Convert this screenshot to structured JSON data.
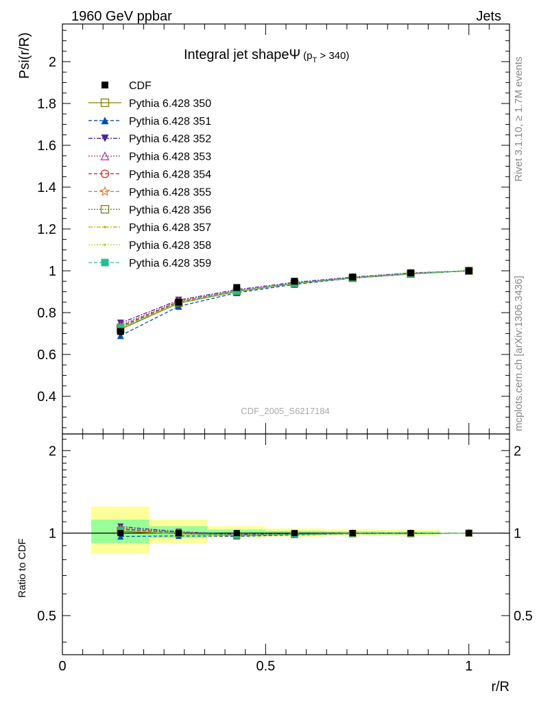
{
  "header": {
    "left": "1960 GeV ppbar",
    "right": "Jets"
  },
  "side": {
    "rivet": "Rivet 3.1.10, ≥ 1.7M events",
    "mcplots": "mcplots.cern.ch [arXiv:1306.3436]"
  },
  "title": {
    "main": "Integral jet shapeΨ",
    "sub_open": "(p",
    "sub_index": "T",
    "sub_close": " > 340)"
  },
  "analysis_id": "CDF_2005_S6217184",
  "chart_data": {
    "type": "line",
    "xlabel": "r/R",
    "ylabel": "Psi(r/R)",
    "ratio_ylabel": "Ratio to CDF",
    "xlim": [
      0,
      1.1
    ],
    "ylim": [
      0.22,
      2.18
    ],
    "ratio_ylim": [
      0.36,
      2.3
    ],
    "x_ticks": [
      "0",
      "0.5",
      "1"
    ],
    "y_ticks": [
      "0.4",
      "0.6",
      "0.8",
      "1",
      "1.2",
      "1.4",
      "1.6",
      "1.8",
      "2"
    ],
    "ratio_ticks": [
      "0.5",
      "1",
      "2"
    ],
    "x": [
      0.143,
      0.286,
      0.429,
      0.571,
      0.714,
      0.857,
      1.0
    ],
    "data_series": {
      "name": "CDF",
      "values": [
        0.71,
        0.85,
        0.92,
        0.95,
        0.97,
        0.99,
        1.0
      ],
      "color": "#000000",
      "marker": "filled-square"
    },
    "band_edges": [
      0.071,
      0.214,
      0.357,
      0.5,
      0.643,
      0.786,
      0.929
    ],
    "band_yellow_ratio": [
      [
        0.84,
        1.25
      ],
      [
        0.92,
        1.12
      ],
      [
        0.96,
        1.06
      ],
      [
        0.97,
        1.04
      ],
      [
        0.975,
        1.035
      ],
      [
        0.98,
        1.03
      ]
    ],
    "band_green_ratio": [
      [
        0.92,
        1.12
      ],
      [
        0.96,
        1.06
      ],
      [
        0.98,
        1.03
      ],
      [
        0.985,
        1.02
      ],
      [
        0.99,
        1.015
      ],
      [
        0.99,
        1.012
      ]
    ],
    "legend_position": "top-left",
    "series": [
      {
        "name": "Pythia 6.428 350",
        "color": "#808000",
        "dash": "",
        "marker": "open-square",
        "values": [
          0.72,
          0.845,
          0.9,
          0.94,
          0.965,
          0.985,
          1.0
        ]
      },
      {
        "name": "Pythia 6.428 351",
        "color": "#0050b0",
        "dash": "5,3",
        "marker": "filled-triangle-up",
        "values": [
          0.69,
          0.83,
          0.895,
          0.935,
          0.965,
          0.985,
          1.0
        ]
      },
      {
        "name": "Pythia 6.428 352",
        "color": "#5020a0",
        "dash": "6,2,2,2",
        "marker": "filled-triangle-down",
        "values": [
          0.75,
          0.86,
          0.91,
          0.945,
          0.97,
          0.99,
          1.0
        ]
      },
      {
        "name": "Pythia 6.428 353",
        "color": "#b03080",
        "dash": "2,2",
        "marker": "open-triangle-up",
        "values": [
          0.74,
          0.855,
          0.905,
          0.94,
          0.968,
          0.988,
          1.0
        ]
      },
      {
        "name": "Pythia 6.428 354",
        "color": "#d02020",
        "dash": "5,3",
        "marker": "open-circle",
        "values": [
          0.735,
          0.852,
          0.904,
          0.94,
          0.967,
          0.987,
          1.0
        ]
      },
      {
        "name": "Pythia 6.428 355",
        "color": "#e07020",
        "dash": "5,3",
        "marker": "open-star",
        "values": [
          0.73,
          0.85,
          0.903,
          0.94,
          0.967,
          0.987,
          1.0
        ]
      },
      {
        "name": "Pythia 6.428 356",
        "color": "#708020",
        "dash": "2,2",
        "marker": "open-square",
        "values": [
          0.728,
          0.848,
          0.902,
          0.94,
          0.966,
          0.987,
          1.0
        ]
      },
      {
        "name": "Pythia 6.428 357",
        "color": "#d0b000",
        "dash": "6,2,2,2",
        "marker": "small-dot",
        "values": [
          0.727,
          0.847,
          0.902,
          0.939,
          0.966,
          0.987,
          1.0
        ]
      },
      {
        "name": "Pythia 6.428 358",
        "color": "#b8d020",
        "dash": "2,2",
        "marker": "small-dot",
        "values": [
          0.726,
          0.846,
          0.901,
          0.939,
          0.966,
          0.986,
          1.0
        ]
      },
      {
        "name": "Pythia 6.428 359",
        "color": "#20c090",
        "dash": "5,3",
        "marker": "filled-square",
        "values": [
          0.729,
          0.849,
          0.903,
          0.94,
          0.967,
          0.987,
          1.0
        ]
      }
    ]
  }
}
